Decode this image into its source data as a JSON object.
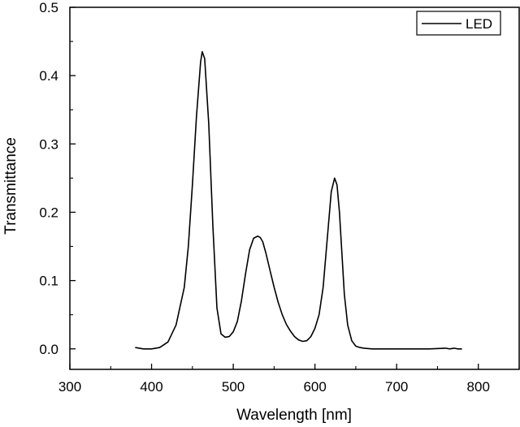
{
  "chart_data": {
    "type": "line",
    "title": "",
    "xlabel": "Wavelength [nm]",
    "ylabel": "Transmittance",
    "xlim": [
      300,
      850
    ],
    "ylim": [
      -0.03,
      0.5
    ],
    "xticks": [
      300,
      400,
      500,
      600,
      700,
      800
    ],
    "xtick_labels": [
      "300",
      "400",
      "500",
      "600",
      "700",
      "800"
    ],
    "yticks": [
      0.0,
      0.1,
      0.2,
      0.3,
      0.4,
      0.5
    ],
    "ytick_labels": [
      "0.0",
      "0.1",
      "0.2",
      "0.3",
      "0.4",
      "0.5"
    ],
    "grid": false,
    "legend_position": "top-right",
    "series": [
      {
        "name": "LED",
        "color": "#000000",
        "x": [
          380,
          390,
          400,
          410,
          420,
          430,
          440,
          445,
          450,
          455,
          460,
          462,
          465,
          470,
          475,
          480,
          485,
          490,
          495,
          500,
          505,
          510,
          515,
          520,
          525,
          530,
          533,
          536,
          540,
          545,
          550,
          555,
          560,
          565,
          570,
          575,
          580,
          585,
          590,
          595,
          600,
          605,
          610,
          615,
          620,
          624,
          627,
          630,
          633,
          636,
          640,
          645,
          650,
          655,
          660,
          670,
          680,
          700,
          720,
          740,
          760,
          765,
          770,
          775,
          780
        ],
        "y": [
          0.002,
          0.0,
          0.0,
          0.002,
          0.01,
          0.035,
          0.09,
          0.15,
          0.24,
          0.34,
          0.42,
          0.435,
          0.425,
          0.33,
          0.18,
          0.06,
          0.022,
          0.017,
          0.018,
          0.025,
          0.04,
          0.07,
          0.11,
          0.145,
          0.162,
          0.165,
          0.163,
          0.157,
          0.14,
          0.115,
          0.09,
          0.068,
          0.05,
          0.036,
          0.026,
          0.018,
          0.013,
          0.011,
          0.012,
          0.018,
          0.03,
          0.05,
          0.09,
          0.16,
          0.23,
          0.25,
          0.24,
          0.2,
          0.14,
          0.08,
          0.035,
          0.012,
          0.004,
          0.002,
          0.001,
          0.0,
          0.0,
          0.0,
          0.0,
          0.0,
          0.001,
          0.0,
          0.001,
          0.0,
          0.0
        ]
      }
    ]
  }
}
